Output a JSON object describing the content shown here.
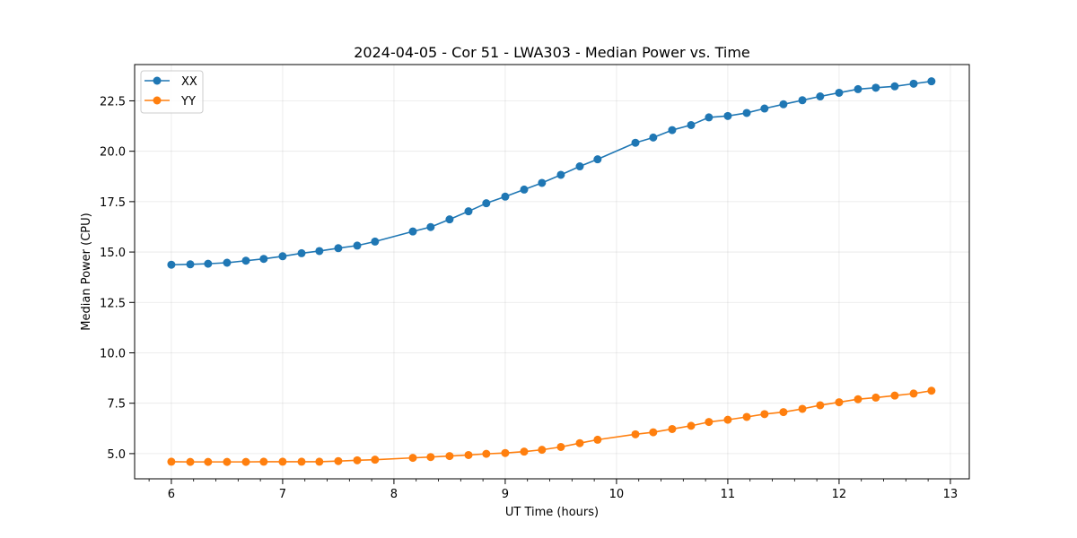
{
  "chart_data": {
    "type": "line",
    "title": "2024-04-05 - Cor 51 - LWA303 - Median Power vs. Time",
    "xlabel": "UT Time (hours)",
    "ylabel": "Median Power (CPU)",
    "xlim": [
      5.67,
      13.17
    ],
    "ylim": [
      3.75,
      24.3
    ],
    "xticks": [
      6,
      7,
      8,
      9,
      10,
      11,
      12,
      13
    ],
    "xtick_labels": [
      "6",
      "7",
      "8",
      "9",
      "10",
      "11",
      "12",
      "13"
    ],
    "xminor_step": 0.2,
    "yticks": [
      5.0,
      7.5,
      10.0,
      12.5,
      15.0,
      17.5,
      20.0,
      22.5
    ],
    "ytick_labels": [
      "5.0",
      "7.5",
      "10.0",
      "12.5",
      "15.0",
      "17.5",
      "20.0",
      "22.5"
    ],
    "grid": true,
    "legend_position": "top-left",
    "x": [
      6.0,
      6.17,
      6.33,
      6.5,
      6.67,
      6.83,
      7.0,
      7.17,
      7.33,
      7.5,
      7.67,
      7.83,
      8.17,
      8.33,
      8.5,
      8.67,
      8.83,
      9.0,
      9.17,
      9.33,
      9.5,
      9.67,
      9.83,
      10.17,
      10.33,
      10.5,
      10.67,
      10.83,
      11.0,
      11.17,
      11.33,
      11.5,
      11.67,
      11.83,
      12.0,
      12.17,
      12.33,
      12.5,
      12.67,
      12.83
    ],
    "series": [
      {
        "name": "XX",
        "color": "#1f77b4",
        "values": [
          14.37,
          14.39,
          14.42,
          14.47,
          14.57,
          14.66,
          14.79,
          14.94,
          15.05,
          15.19,
          15.32,
          15.52,
          16.02,
          16.24,
          16.62,
          17.02,
          17.42,
          17.75,
          18.1,
          18.43,
          18.83,
          19.25,
          19.6,
          20.42,
          20.68,
          21.05,
          21.3,
          21.68,
          21.75,
          21.9,
          22.12,
          22.33,
          22.53,
          22.72,
          22.9,
          23.08,
          23.15,
          23.22,
          23.35,
          23.47
        ]
      },
      {
        "name": "YY",
        "color": "#ff7f0e",
        "values": [
          4.6,
          4.59,
          4.59,
          4.59,
          4.59,
          4.6,
          4.6,
          4.6,
          4.6,
          4.63,
          4.67,
          4.7,
          4.79,
          4.83,
          4.88,
          4.93,
          4.99,
          5.03,
          5.1,
          5.19,
          5.33,
          5.52,
          5.69,
          5.96,
          6.06,
          6.22,
          6.38,
          6.57,
          6.68,
          6.82,
          6.96,
          7.06,
          7.22,
          7.4,
          7.55,
          7.7,
          7.78,
          7.88,
          7.98,
          8.12
        ]
      }
    ]
  }
}
